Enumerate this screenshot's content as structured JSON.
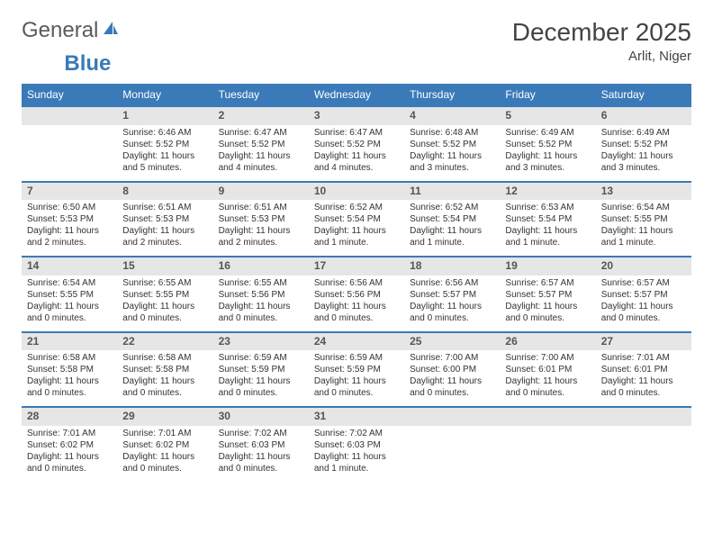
{
  "brand": {
    "part1": "General",
    "part2": "Blue",
    "logo_color": "#3a7ab8"
  },
  "title": "December 2025",
  "location": "Arlit, Niger",
  "header_bg": "#3a7ab8",
  "header_text": "#ffffff",
  "daynum_bg": "#e6e6e6",
  "rule_color": "#3a7ab8",
  "day_headers": [
    "Sunday",
    "Monday",
    "Tuesday",
    "Wednesday",
    "Thursday",
    "Friday",
    "Saturday"
  ],
  "weeks": [
    [
      {
        "n": "",
        "sr": "",
        "ss": "",
        "dl": ""
      },
      {
        "n": "1",
        "sr": "Sunrise: 6:46 AM",
        "ss": "Sunset: 5:52 PM",
        "dl": "Daylight: 11 hours and 5 minutes."
      },
      {
        "n": "2",
        "sr": "Sunrise: 6:47 AM",
        "ss": "Sunset: 5:52 PM",
        "dl": "Daylight: 11 hours and 4 minutes."
      },
      {
        "n": "3",
        "sr": "Sunrise: 6:47 AM",
        "ss": "Sunset: 5:52 PM",
        "dl": "Daylight: 11 hours and 4 minutes."
      },
      {
        "n": "4",
        "sr": "Sunrise: 6:48 AM",
        "ss": "Sunset: 5:52 PM",
        "dl": "Daylight: 11 hours and 3 minutes."
      },
      {
        "n": "5",
        "sr": "Sunrise: 6:49 AM",
        "ss": "Sunset: 5:52 PM",
        "dl": "Daylight: 11 hours and 3 minutes."
      },
      {
        "n": "6",
        "sr": "Sunrise: 6:49 AM",
        "ss": "Sunset: 5:52 PM",
        "dl": "Daylight: 11 hours and 3 minutes."
      }
    ],
    [
      {
        "n": "7",
        "sr": "Sunrise: 6:50 AM",
        "ss": "Sunset: 5:53 PM",
        "dl": "Daylight: 11 hours and 2 minutes."
      },
      {
        "n": "8",
        "sr": "Sunrise: 6:51 AM",
        "ss": "Sunset: 5:53 PM",
        "dl": "Daylight: 11 hours and 2 minutes."
      },
      {
        "n": "9",
        "sr": "Sunrise: 6:51 AM",
        "ss": "Sunset: 5:53 PM",
        "dl": "Daylight: 11 hours and 2 minutes."
      },
      {
        "n": "10",
        "sr": "Sunrise: 6:52 AM",
        "ss": "Sunset: 5:54 PM",
        "dl": "Daylight: 11 hours and 1 minute."
      },
      {
        "n": "11",
        "sr": "Sunrise: 6:52 AM",
        "ss": "Sunset: 5:54 PM",
        "dl": "Daylight: 11 hours and 1 minute."
      },
      {
        "n": "12",
        "sr": "Sunrise: 6:53 AM",
        "ss": "Sunset: 5:54 PM",
        "dl": "Daylight: 11 hours and 1 minute."
      },
      {
        "n": "13",
        "sr": "Sunrise: 6:54 AM",
        "ss": "Sunset: 5:55 PM",
        "dl": "Daylight: 11 hours and 1 minute."
      }
    ],
    [
      {
        "n": "14",
        "sr": "Sunrise: 6:54 AM",
        "ss": "Sunset: 5:55 PM",
        "dl": "Daylight: 11 hours and 0 minutes."
      },
      {
        "n": "15",
        "sr": "Sunrise: 6:55 AM",
        "ss": "Sunset: 5:55 PM",
        "dl": "Daylight: 11 hours and 0 minutes."
      },
      {
        "n": "16",
        "sr": "Sunrise: 6:55 AM",
        "ss": "Sunset: 5:56 PM",
        "dl": "Daylight: 11 hours and 0 minutes."
      },
      {
        "n": "17",
        "sr": "Sunrise: 6:56 AM",
        "ss": "Sunset: 5:56 PM",
        "dl": "Daylight: 11 hours and 0 minutes."
      },
      {
        "n": "18",
        "sr": "Sunrise: 6:56 AM",
        "ss": "Sunset: 5:57 PM",
        "dl": "Daylight: 11 hours and 0 minutes."
      },
      {
        "n": "19",
        "sr": "Sunrise: 6:57 AM",
        "ss": "Sunset: 5:57 PM",
        "dl": "Daylight: 11 hours and 0 minutes."
      },
      {
        "n": "20",
        "sr": "Sunrise: 6:57 AM",
        "ss": "Sunset: 5:57 PM",
        "dl": "Daylight: 11 hours and 0 minutes."
      }
    ],
    [
      {
        "n": "21",
        "sr": "Sunrise: 6:58 AM",
        "ss": "Sunset: 5:58 PM",
        "dl": "Daylight: 11 hours and 0 minutes."
      },
      {
        "n": "22",
        "sr": "Sunrise: 6:58 AM",
        "ss": "Sunset: 5:58 PM",
        "dl": "Daylight: 11 hours and 0 minutes."
      },
      {
        "n": "23",
        "sr": "Sunrise: 6:59 AM",
        "ss": "Sunset: 5:59 PM",
        "dl": "Daylight: 11 hours and 0 minutes."
      },
      {
        "n": "24",
        "sr": "Sunrise: 6:59 AM",
        "ss": "Sunset: 5:59 PM",
        "dl": "Daylight: 11 hours and 0 minutes."
      },
      {
        "n": "25",
        "sr": "Sunrise: 7:00 AM",
        "ss": "Sunset: 6:00 PM",
        "dl": "Daylight: 11 hours and 0 minutes."
      },
      {
        "n": "26",
        "sr": "Sunrise: 7:00 AM",
        "ss": "Sunset: 6:01 PM",
        "dl": "Daylight: 11 hours and 0 minutes."
      },
      {
        "n": "27",
        "sr": "Sunrise: 7:01 AM",
        "ss": "Sunset: 6:01 PM",
        "dl": "Daylight: 11 hours and 0 minutes."
      }
    ],
    [
      {
        "n": "28",
        "sr": "Sunrise: 7:01 AM",
        "ss": "Sunset: 6:02 PM",
        "dl": "Daylight: 11 hours and 0 minutes."
      },
      {
        "n": "29",
        "sr": "Sunrise: 7:01 AM",
        "ss": "Sunset: 6:02 PM",
        "dl": "Daylight: 11 hours and 0 minutes."
      },
      {
        "n": "30",
        "sr": "Sunrise: 7:02 AM",
        "ss": "Sunset: 6:03 PM",
        "dl": "Daylight: 11 hours and 0 minutes."
      },
      {
        "n": "31",
        "sr": "Sunrise: 7:02 AM",
        "ss": "Sunset: 6:03 PM",
        "dl": "Daylight: 11 hours and 1 minute."
      },
      {
        "n": "",
        "sr": "",
        "ss": "",
        "dl": ""
      },
      {
        "n": "",
        "sr": "",
        "ss": "",
        "dl": ""
      },
      {
        "n": "",
        "sr": "",
        "ss": "",
        "dl": ""
      }
    ]
  ]
}
